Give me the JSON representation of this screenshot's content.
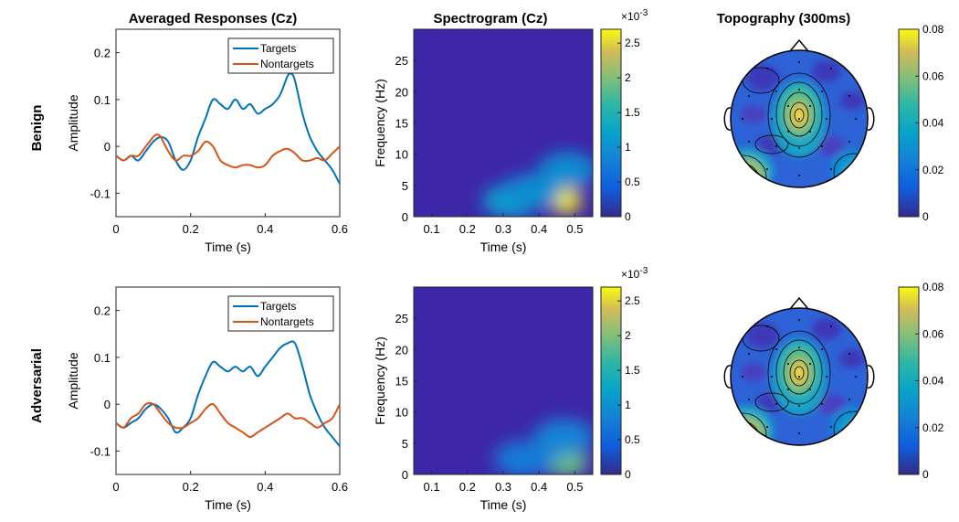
{
  "figure": {
    "row_labels": [
      "Benign",
      "Adversarial"
    ],
    "titles": [
      "Averaged Responses (Cz)",
      "Spectrogram (Cz)",
      "Topography (300ms)"
    ]
  },
  "chart_data": [
    {
      "type": "line",
      "row": "Benign",
      "title": "Averaged Responses (Cz)",
      "xlabel": "Time (s)",
      "ylabel": "Amplitude",
      "xlim": [
        0,
        0.6
      ],
      "ylim": [
        -0.15,
        0.25
      ],
      "xticks": [
        0,
        0.2,
        0.4,
        0.6
      ],
      "xtick_labels": [
        "0",
        "0.2",
        "0.4",
        "0.6"
      ],
      "yticks": [
        -0.1,
        0,
        0.1,
        0.2
      ],
      "ytick_labels": [
        "-0.1",
        "0",
        "0.1",
        "0.2"
      ],
      "legend": "top-right",
      "series": [
        {
          "name": "Targets",
          "color": "#0072BD",
          "x": [
            0,
            0.02,
            0.04,
            0.06,
            0.08,
            0.1,
            0.12,
            0.14,
            0.16,
            0.18,
            0.2,
            0.22,
            0.24,
            0.26,
            0.28,
            0.3,
            0.32,
            0.34,
            0.36,
            0.38,
            0.4,
            0.42,
            0.44,
            0.46,
            0.47,
            0.48,
            0.5,
            0.52,
            0.54,
            0.56,
            0.58,
            0.6
          ],
          "y": [
            -0.02,
            -0.03,
            -0.02,
            -0.03,
            -0.01,
            0.01,
            0.02,
            0.01,
            -0.03,
            -0.05,
            -0.03,
            0.02,
            0.06,
            0.1,
            0.09,
            0.08,
            0.1,
            0.08,
            0.09,
            0.07,
            0.08,
            0.09,
            0.11,
            0.15,
            0.155,
            0.14,
            0.07,
            0.02,
            -0.01,
            -0.03,
            -0.05,
            -0.08
          ]
        },
        {
          "name": "Nontargets",
          "color": "#D95319",
          "x": [
            0,
            0.02,
            0.04,
            0.06,
            0.08,
            0.1,
            0.11,
            0.12,
            0.14,
            0.16,
            0.18,
            0.2,
            0.22,
            0.24,
            0.26,
            0.28,
            0.3,
            0.32,
            0.34,
            0.36,
            0.38,
            0.4,
            0.42,
            0.44,
            0.46,
            0.48,
            0.5,
            0.52,
            0.54,
            0.56,
            0.58,
            0.6
          ],
          "y": [
            -0.02,
            -0.03,
            -0.02,
            -0.02,
            0,
            0.02,
            0.025,
            0.02,
            -0.01,
            -0.03,
            -0.02,
            -0.02,
            -0.01,
            0.01,
            0,
            -0.03,
            -0.04,
            -0.045,
            -0.04,
            -0.04,
            -0.045,
            -0.04,
            -0.02,
            -0.01,
            -0.005,
            -0.015,
            -0.03,
            -0.03,
            -0.025,
            -0.03,
            -0.015,
            0
          ]
        }
      ]
    },
    {
      "type": "heatmap",
      "row": "Benign",
      "title": "Spectrogram (Cz)",
      "xlabel": "Time (s)",
      "ylabel": "Frequency (Hz)",
      "xlim": [
        0.05,
        0.55
      ],
      "ylim": [
        0,
        30
      ],
      "xticks": [
        0.1,
        0.2,
        0.3,
        0.4,
        0.5
      ],
      "xtick_labels": [
        "0.1",
        "0.2",
        "0.3",
        "0.4",
        "0.5"
      ],
      "yticks": [
        0,
        5,
        10,
        15,
        20,
        25
      ],
      "ytick_labels": [
        "0",
        "5",
        "10",
        "15",
        "20",
        "25"
      ],
      "colorbar": {
        "range": [
          0,
          0.0027
        ],
        "ticks": [
          0,
          0.0005,
          0.001,
          0.0015,
          0.002,
          0.0025
        ],
        "tick_labels": [
          "0",
          "0.5",
          "1",
          "1.5",
          "2",
          "2.5"
        ],
        "exponent_label": "×10",
        "exponent_value": "-3"
      },
      "blobs": [
        {
          "t": 0.475,
          "f": 2.5,
          "peak": 0.0026
        },
        {
          "t": 0.32,
          "f": 2.5,
          "peak": 0.0011
        },
        {
          "t": 0.38,
          "f": 4.0,
          "peak": 0.0009
        },
        {
          "t": 0.48,
          "f": 7.5,
          "peak": 0.0009
        }
      ]
    },
    {
      "type": "heatmap",
      "row": "Benign",
      "title": "Topography (300ms)",
      "colorbar": {
        "range": [
          0,
          0.08
        ],
        "ticks": [
          0,
          0.02,
          0.04,
          0.06,
          0.08
        ],
        "tick_labels": [
          "0",
          "0.02",
          "0.04",
          "0.06",
          "0.08"
        ]
      },
      "hotspots": [
        {
          "location": "central",
          "value": 0.075
        },
        {
          "location": "lower-left",
          "value": 0.075
        },
        {
          "location": "lower-right",
          "value": 0.035
        }
      ]
    },
    {
      "type": "line",
      "row": "Adversarial",
      "title": "",
      "xlabel": "Time (s)",
      "ylabel": "Amplitude",
      "xlim": [
        0,
        0.6
      ],
      "ylim": [
        -0.15,
        0.25
      ],
      "xticks": [
        0,
        0.2,
        0.4,
        0.6
      ],
      "xtick_labels": [
        "0",
        "0.2",
        "0.4",
        "0.6"
      ],
      "yticks": [
        -0.1,
        0,
        0.1,
        0.2
      ],
      "ytick_labels": [
        "-0.1",
        "0",
        "0.1",
        "0.2"
      ],
      "legend": "top-right",
      "series": [
        {
          "name": "Targets",
          "color": "#0072BD",
          "x": [
            0,
            0.02,
            0.04,
            0.06,
            0.08,
            0.1,
            0.12,
            0.14,
            0.16,
            0.18,
            0.2,
            0.22,
            0.24,
            0.26,
            0.28,
            0.3,
            0.32,
            0.34,
            0.36,
            0.38,
            0.4,
            0.42,
            0.44,
            0.46,
            0.48,
            0.5,
            0.52,
            0.54,
            0.56,
            0.58,
            0.6
          ],
          "y": [
            -0.04,
            -0.05,
            -0.04,
            -0.03,
            -0.01,
            0,
            -0.01,
            -0.03,
            -0.06,
            -0.05,
            -0.03,
            0.02,
            0.06,
            0.09,
            0.08,
            0.07,
            0.08,
            0.07,
            0.08,
            0.06,
            0.08,
            0.1,
            0.12,
            0.13,
            0.13,
            0.08,
            0.02,
            -0.02,
            -0.05,
            -0.07,
            -0.09
          ]
        },
        {
          "name": "Nontargets",
          "color": "#D95319",
          "x": [
            0,
            0.02,
            0.04,
            0.06,
            0.08,
            0.1,
            0.12,
            0.14,
            0.16,
            0.18,
            0.2,
            0.22,
            0.24,
            0.26,
            0.28,
            0.3,
            0.32,
            0.34,
            0.36,
            0.38,
            0.4,
            0.42,
            0.44,
            0.46,
            0.48,
            0.5,
            0.52,
            0.54,
            0.56,
            0.58,
            0.6
          ],
          "y": [
            -0.04,
            -0.05,
            -0.03,
            -0.02,
            0,
            0,
            -0.02,
            -0.04,
            -0.05,
            -0.05,
            -0.04,
            -0.03,
            -0.01,
            0,
            -0.02,
            -0.04,
            -0.05,
            -0.06,
            -0.07,
            -0.06,
            -0.05,
            -0.04,
            -0.03,
            -0.02,
            -0.03,
            -0.03,
            -0.04,
            -0.05,
            -0.04,
            -0.03,
            0
          ]
        }
      ]
    },
    {
      "type": "heatmap",
      "row": "Adversarial",
      "title": "",
      "xlabel": "Time (s)",
      "ylabel": "Frequency (Hz)",
      "xlim": [
        0.05,
        0.55
      ],
      "ylim": [
        0,
        30
      ],
      "xticks": [
        0.1,
        0.2,
        0.3,
        0.4,
        0.5
      ],
      "xtick_labels": [
        "0.1",
        "0.2",
        "0.3",
        "0.4",
        "0.5"
      ],
      "yticks": [
        0,
        5,
        10,
        15,
        20,
        25
      ],
      "ytick_labels": [
        "0",
        "5",
        "10",
        "15",
        "20",
        "25"
      ],
      "colorbar": {
        "range": [
          0,
          0.0027
        ],
        "ticks": [
          0,
          0.0005,
          0.001,
          0.0015,
          0.002,
          0.0025
        ],
        "tick_labels": [
          "0",
          "0.5",
          "1",
          "1.5",
          "2",
          "2.5"
        ],
        "exponent_label": "×10",
        "exponent_value": "-3"
      },
      "blobs": [
        {
          "t": 0.475,
          "f": 2.0,
          "peak": 0.0018
        },
        {
          "t": 0.36,
          "f": 2.5,
          "peak": 0.0007
        },
        {
          "t": 0.47,
          "f": 6.0,
          "peak": 0.0008
        }
      ]
    },
    {
      "type": "heatmap",
      "row": "Adversarial",
      "title": "",
      "colorbar": {
        "range": [
          0,
          0.08
        ],
        "ticks": [
          0,
          0.02,
          0.04,
          0.06,
          0.08
        ],
        "tick_labels": [
          "0",
          "0.02",
          "0.04",
          "0.06",
          "0.08"
        ]
      },
      "hotspots": [
        {
          "location": "central",
          "value": 0.075
        },
        {
          "location": "lower-left",
          "value": 0.075
        },
        {
          "location": "lower-right",
          "value": 0.035
        }
      ]
    }
  ]
}
